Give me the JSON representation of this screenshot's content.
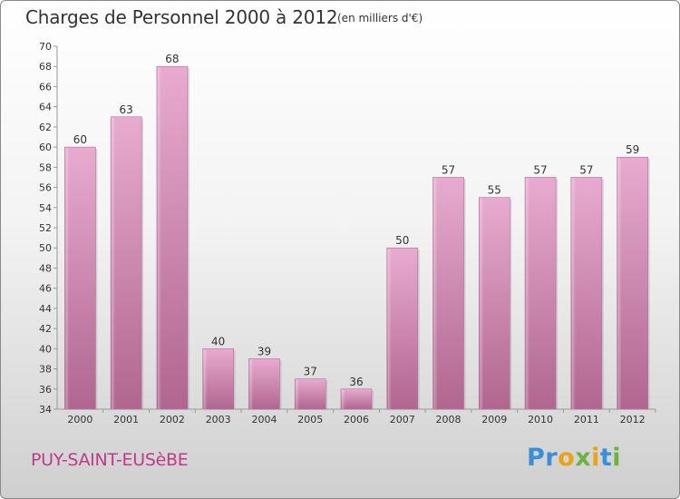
{
  "chart_data": {
    "type": "bar",
    "title": "Charges de Personnel 2000 à 2012",
    "subtitle": "(en milliers d'€)",
    "categories": [
      "2000",
      "2001",
      "2002",
      "2003",
      "2004",
      "2005",
      "2006",
      "2007",
      "2008",
      "2009",
      "2010",
      "2011",
      "2012"
    ],
    "values": [
      60,
      63,
      68,
      40,
      39,
      37,
      36,
      50,
      57,
      55,
      57,
      57,
      59
    ],
    "ylim": [
      34,
      70
    ],
    "yticks": [
      34,
      36,
      38,
      40,
      42,
      44,
      46,
      48,
      50,
      52,
      54,
      56,
      58,
      60,
      62,
      64,
      66,
      68,
      70
    ],
    "xlabel": "",
    "ylabel": "",
    "grid": false,
    "bar_color": "#c9709f",
    "bar_color_light": "#e2a8cc"
  },
  "footer": {
    "commune": "PUY-SAINT-EUSèBE",
    "brand_letters": [
      {
        "ch": "P",
        "color": "#3a8fd8"
      },
      {
        "ch": "r",
        "color": "#3a8fd8"
      },
      {
        "ch": "o",
        "color": "#e8a317"
      },
      {
        "ch": "x",
        "color": "#6cb33f"
      },
      {
        "ch": "i",
        "color": "#e8a317"
      },
      {
        "ch": "t",
        "color": "#3a8fd8"
      },
      {
        "ch": "i",
        "color": "#6cb33f"
      }
    ],
    "commune_color": "#c0398b"
  }
}
